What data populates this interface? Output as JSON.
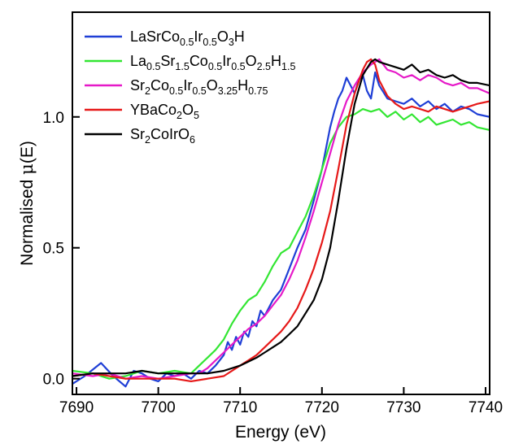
{
  "chart_data": {
    "type": "line",
    "title": "",
    "xlabel": "Energy (eV)",
    "ylabel_prefix": "Normalised ",
    "ylabel_mu": "μ",
    "ylabel_suffix": "(E)",
    "xlim": [
      7689.5,
      7740.5
    ],
    "ylim": [
      -0.06,
      1.4
    ],
    "x_ticks": [
      7690,
      7700,
      7710,
      7720,
      7730,
      7740
    ],
    "x_tick_labels": [
      "7690",
      "7700",
      "7710",
      "7720",
      "7730",
      "7740"
    ],
    "y_ticks": [
      0.0,
      0.5,
      1.0
    ],
    "y_tick_labels": [
      "0.0",
      "0.5",
      "1.0"
    ],
    "grid": false,
    "legend_position": "top-left",
    "series": [
      {
        "name_parts": [
          [
            "LaSrCo",
            ""
          ],
          [
            "0.5",
            "sub"
          ],
          [
            "Ir",
            ""
          ],
          [
            "0.5",
            "sub"
          ],
          [
            "O",
            ""
          ],
          [
            "3",
            "sub"
          ],
          [
            "H",
            ""
          ]
        ],
        "color": "#1f3fd6",
        "x": [
          7689.5,
          7691,
          7693,
          7694.5,
          7696,
          7697,
          7698,
          7699,
          7700,
          7701,
          7702,
          7703,
          7704,
          7705,
          7706,
          7707,
          7708,
          7708.5,
          7709,
          7709.5,
          7710,
          7710.5,
          7711,
          7711.5,
          7712,
          7712.5,
          7713,
          7714,
          7715,
          7716,
          7717,
          7718,
          7719,
          7720,
          7720.5,
          7721,
          7721.5,
          7722,
          7722.5,
          7723,
          7723.5,
          7724,
          7724.5,
          7725,
          7725.5,
          7726,
          7726.5,
          7727,
          7728,
          7729,
          7730,
          7731,
          7732,
          7733,
          7734,
          7735,
          7736,
          7737,
          7738,
          7739,
          7740.5
        ],
        "y": [
          -0.02,
          0.01,
          0.06,
          0.01,
          -0.03,
          0.03,
          0.02,
          0.0,
          -0.01,
          0.02,
          0.01,
          0.02,
          0.0,
          0.03,
          0.02,
          0.05,
          0.09,
          0.14,
          0.11,
          0.16,
          0.13,
          0.18,
          0.16,
          0.22,
          0.2,
          0.26,
          0.24,
          0.3,
          0.34,
          0.42,
          0.5,
          0.57,
          0.68,
          0.8,
          0.88,
          0.96,
          1.02,
          1.07,
          1.1,
          1.15,
          1.12,
          1.09,
          1.14,
          1.16,
          1.1,
          1.07,
          1.17,
          1.12,
          1.07,
          1.06,
          1.05,
          1.07,
          1.04,
          1.06,
          1.03,
          1.05,
          1.02,
          1.04,
          1.03,
          1.01,
          1.0
        ]
      },
      {
        "name_parts": [
          [
            "La",
            ""
          ],
          [
            "0.5",
            "sub"
          ],
          [
            "Sr",
            ""
          ],
          [
            "1.5",
            "sub"
          ],
          [
            "Co",
            ""
          ],
          [
            "0.5",
            "sub"
          ],
          [
            "Ir",
            ""
          ],
          [
            "0.5",
            "sub"
          ],
          [
            "O",
            ""
          ],
          [
            "2.5",
            "sub"
          ],
          [
            "H",
            ""
          ],
          [
            "1.5",
            "sub"
          ]
        ],
        "color": "#33e633",
        "x": [
          7689.5,
          7692,
          7694,
          7696,
          7698,
          7700,
          7702,
          7704,
          7705,
          7706,
          7707,
          7708,
          7709,
          7710,
          7711,
          7712,
          7713,
          7714,
          7715,
          7716,
          7717,
          7718,
          7719,
          7720,
          7721,
          7722,
          7723,
          7724,
          7725,
          7726,
          7727,
          7728,
          7729,
          7730,
          7731,
          7732,
          7733,
          7734,
          7735,
          7736,
          7737,
          7738,
          7739,
          7740.5
        ],
        "y": [
          0.03,
          0.02,
          0.0,
          0.01,
          0.03,
          0.02,
          0.03,
          0.02,
          0.05,
          0.08,
          0.11,
          0.15,
          0.21,
          0.26,
          0.3,
          0.32,
          0.37,
          0.43,
          0.48,
          0.5,
          0.56,
          0.62,
          0.7,
          0.8,
          0.9,
          0.96,
          1.0,
          1.01,
          1.03,
          1.02,
          1.03,
          1.0,
          1.02,
          0.99,
          1.01,
          0.98,
          1.0,
          0.97,
          0.98,
          0.99,
          0.97,
          0.98,
          0.96,
          0.95
        ]
      },
      {
        "name_parts": [
          [
            "Sr",
            ""
          ],
          [
            "2",
            "sub"
          ],
          [
            "Co",
            ""
          ],
          [
            "0.5",
            "sub"
          ],
          [
            "Ir",
            ""
          ],
          [
            "0.5",
            "sub"
          ],
          [
            "O",
            ""
          ],
          [
            "3.25",
            "sub"
          ],
          [
            "H",
            ""
          ],
          [
            "0.75",
            "sub"
          ]
        ],
        "color": "#e619c8",
        "x": [
          7689.5,
          7692,
          7694,
          7696,
          7698,
          7700,
          7702,
          7704,
          7705,
          7706,
          7707,
          7708,
          7709,
          7710,
          7711,
          7712,
          7713,
          7714,
          7715,
          7716,
          7717,
          7718,
          7719,
          7720,
          7721,
          7722,
          7723,
          7724,
          7725,
          7726,
          7727,
          7728,
          7729,
          7730,
          7731,
          7732,
          7733,
          7734,
          7735,
          7736,
          7737,
          7738,
          7739,
          7740.5
        ],
        "y": [
          0.02,
          0.01,
          0.02,
          0.0,
          0.01,
          0.0,
          0.01,
          0.02,
          0.02,
          0.04,
          0.07,
          0.1,
          0.13,
          0.16,
          0.19,
          0.21,
          0.24,
          0.28,
          0.32,
          0.38,
          0.45,
          0.54,
          0.64,
          0.75,
          0.86,
          0.97,
          1.06,
          1.12,
          1.17,
          1.2,
          1.22,
          1.18,
          1.17,
          1.15,
          1.16,
          1.14,
          1.16,
          1.15,
          1.13,
          1.12,
          1.13,
          1.11,
          1.11,
          1.09
        ]
      },
      {
        "name_parts": [
          [
            "YBaCo",
            ""
          ],
          [
            "2",
            "sub"
          ],
          [
            "O",
            ""
          ],
          [
            "5",
            "sub"
          ]
        ],
        "color": "#e61919",
        "x": [
          7689.5,
          7692,
          7694,
          7696,
          7698,
          7700,
          7702,
          7704,
          7706,
          7708,
          7710,
          7711,
          7712,
          7713,
          7714,
          7715,
          7716,
          7717,
          7718,
          7719,
          7720,
          7721,
          7722,
          7723,
          7724,
          7725,
          7725.5,
          7726,
          7726.5,
          7727,
          7728,
          7729,
          7730,
          7731,
          7732,
          7733,
          7734,
          7735,
          7736,
          7737,
          7738,
          7739,
          7740.5
        ],
        "y": [
          0.01,
          0.02,
          0.01,
          0.0,
          0.0,
          0.0,
          0.0,
          -0.01,
          0.0,
          0.01,
          0.05,
          0.07,
          0.09,
          0.12,
          0.15,
          0.18,
          0.22,
          0.27,
          0.34,
          0.42,
          0.52,
          0.64,
          0.8,
          0.97,
          1.09,
          1.18,
          1.21,
          1.22,
          1.2,
          1.14,
          1.08,
          1.05,
          1.03,
          1.04,
          1.03,
          1.02,
          1.04,
          1.03,
          1.02,
          1.03,
          1.04,
          1.05,
          1.06
        ]
      },
      {
        "name_parts": [
          [
            "Sr",
            ""
          ],
          [
            "2",
            "sub"
          ],
          [
            "CoIrO",
            ""
          ],
          [
            "6",
            "sub"
          ]
        ],
        "color": "#000000",
        "x": [
          7689.5,
          7692,
          7694,
          7696,
          7698,
          7700,
          7702,
          7704,
          7706,
          7708,
          7710,
          7712,
          7713,
          7714,
          7715,
          7716,
          7717,
          7718,
          7719,
          7720,
          7721,
          7722,
          7723,
          7724,
          7725,
          7726,
          7726.5,
          7727,
          7728,
          7729,
          7730,
          7731,
          7732,
          7733,
          7734,
          7735,
          7736,
          7737,
          7738,
          7739,
          7740.5
        ],
        "y": [
          0.01,
          0.02,
          0.02,
          0.02,
          0.03,
          0.02,
          0.02,
          0.02,
          0.02,
          0.03,
          0.05,
          0.08,
          0.1,
          0.12,
          0.14,
          0.17,
          0.2,
          0.25,
          0.3,
          0.38,
          0.5,
          0.68,
          0.88,
          1.05,
          1.16,
          1.21,
          1.22,
          1.21,
          1.2,
          1.19,
          1.18,
          1.2,
          1.17,
          1.18,
          1.16,
          1.15,
          1.16,
          1.14,
          1.13,
          1.13,
          1.12
        ]
      }
    ]
  }
}
